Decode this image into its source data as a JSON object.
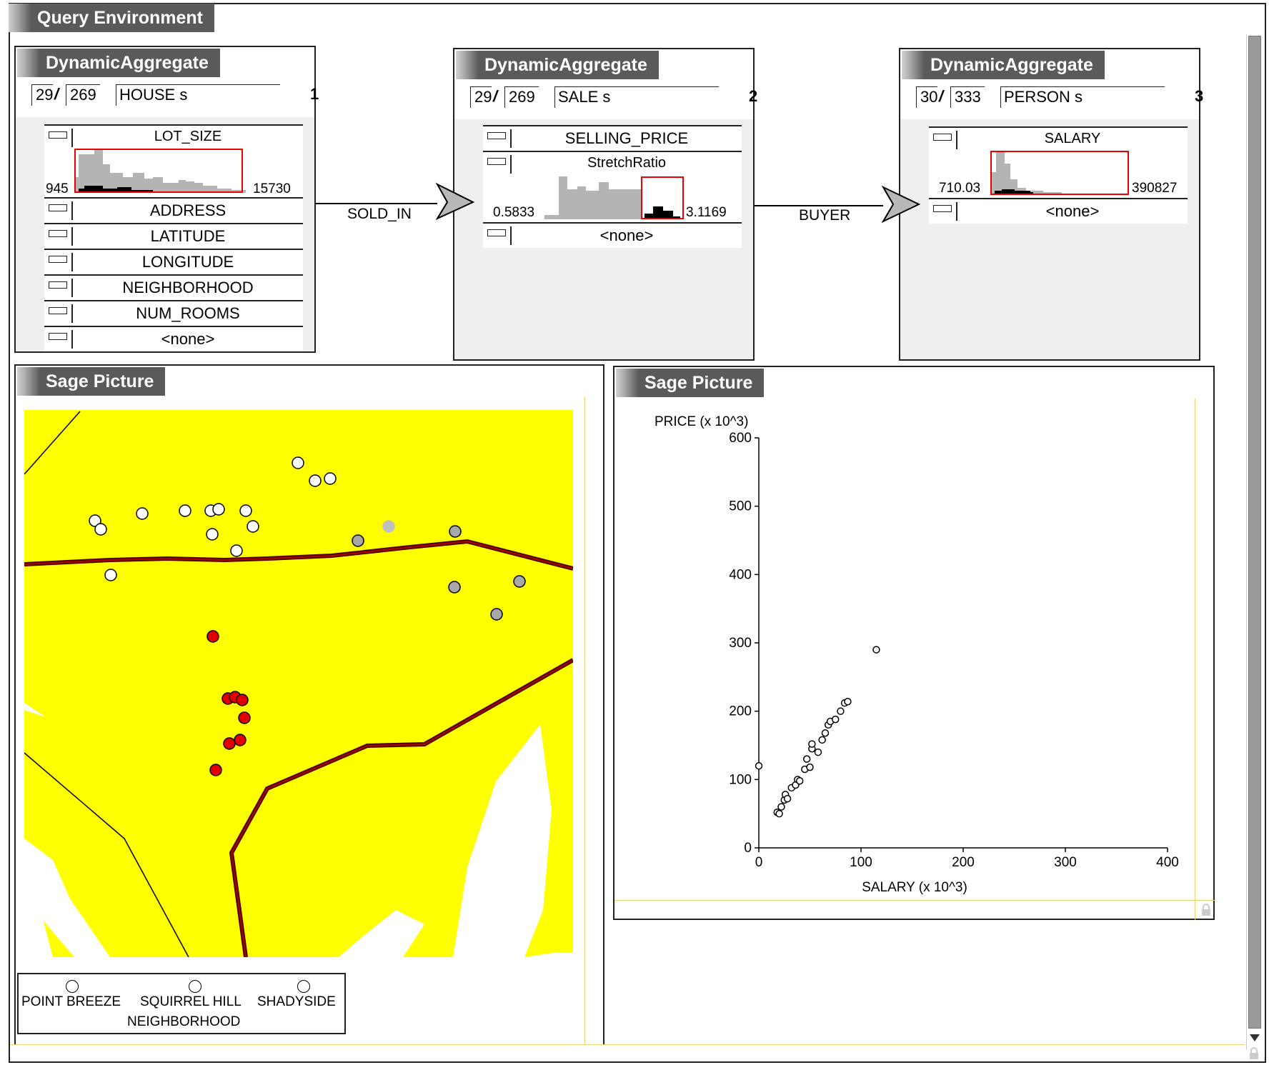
{
  "query_env": {
    "title": "Query Environment"
  },
  "aggregates": [
    {
      "title": "DynamicAggregate",
      "count": "29",
      "total": "269",
      "table": "HOUSE s",
      "index": "1",
      "hist_attr": {
        "label": "LOT_SIZE",
        "min": "945",
        "max": "15730"
      },
      "attributes": [
        "ADDRESS",
        "LATITUDE",
        "LONGITUDE",
        "NEIGHBORHOOD",
        "NUM_ROOMS",
        "<none>"
      ]
    },
    {
      "title": "DynamicAggregate",
      "count": "29",
      "total": "269",
      "table": "SALE s",
      "index": "2",
      "top_attr": "SELLING_PRICE",
      "hist_attr": {
        "label": "StretchRatio",
        "min": "0.5833",
        "max": "3.1169"
      },
      "attributes": [
        "<none>"
      ]
    },
    {
      "title": "DynamicAggregate",
      "count": "30",
      "total": "333",
      "table": "PERSON s",
      "index": "3",
      "hist_attr": {
        "label": "SALARY",
        "min": "710.03",
        "max": "390827"
      },
      "attributes": [
        "<none>"
      ]
    }
  ],
  "relations": {
    "sold_in": "SOLD_IN",
    "buyer": "BUYER"
  },
  "map_panel": {
    "title": "Sage Picture",
    "legend": {
      "title": "NEIGHBORHOOD",
      "items": [
        {
          "label": "POINT BREEZE",
          "color": "#a8a8a8"
        },
        {
          "label": "SQUIRREL HILL",
          "color": "#e00000"
        },
        {
          "label": "SHADYSIDE",
          "color": "#ffffff"
        }
      ]
    }
  },
  "scatter_panel": {
    "title": "Sage Picture"
  },
  "chart_data": {
    "type": "scatter",
    "xlabel": "SALARY (x 10^3)",
    "ylabel": "PRICE (x 10^3)",
    "xlim": [
      0,
      400
    ],
    "ylim": [
      0,
      600
    ],
    "xticks": [
      "0",
      "100",
      "200",
      "300",
      "400"
    ],
    "yticks": [
      "0",
      "100",
      "200",
      "300",
      "400",
      "500",
      "600"
    ],
    "points": [
      [
        0,
        120
      ],
      [
        18,
        52
      ],
      [
        20,
        50
      ],
      [
        22,
        60
      ],
      [
        25,
        70
      ],
      [
        26,
        78
      ],
      [
        28,
        72
      ],
      [
        32,
        88
      ],
      [
        36,
        92
      ],
      [
        38,
        100
      ],
      [
        40,
        98
      ],
      [
        45,
        115
      ],
      [
        47,
        130
      ],
      [
        50,
        118
      ],
      [
        52,
        145
      ],
      [
        52,
        152
      ],
      [
        58,
        140
      ],
      [
        62,
        158
      ],
      [
        65,
        168
      ],
      [
        68,
        180
      ],
      [
        70,
        185
      ],
      [
        75,
        188
      ],
      [
        80,
        200
      ],
      [
        84,
        212
      ],
      [
        87,
        214
      ],
      [
        115,
        290
      ]
    ]
  }
}
